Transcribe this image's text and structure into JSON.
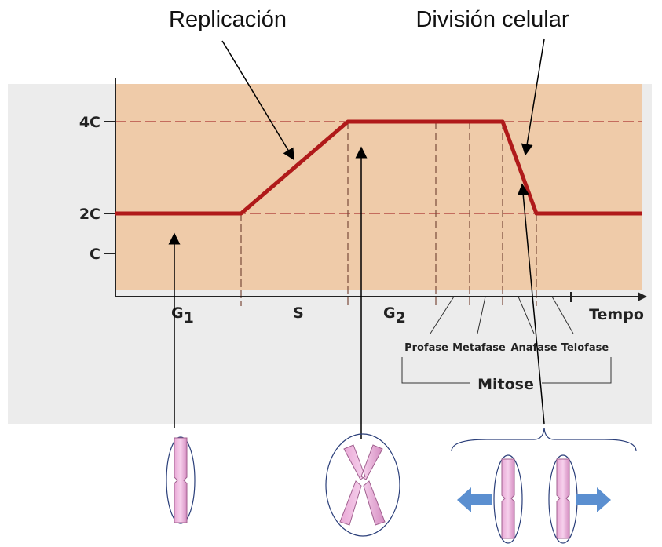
{
  "annotations": {
    "replication": "Replicación",
    "division": "División celular"
  },
  "y_labels": [
    "4C",
    "2C",
    "C"
  ],
  "phases": {
    "g1": {
      "letter": "G",
      "subscript": "1"
    },
    "s": "S",
    "g2": {
      "letter": "G",
      "subscript": "2"
    },
    "time": "Tempo"
  },
  "mitosis": {
    "stages": [
      "Profase",
      "Metafase",
      "Anafase",
      "Telofase"
    ],
    "label": "Mitose"
  }
}
